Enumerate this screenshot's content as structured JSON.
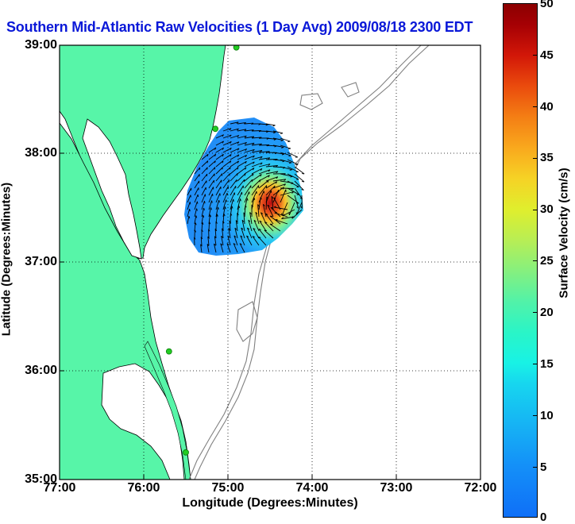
{
  "title": "Southern Mid-Atlantic Raw Velocities (1 Day Avg) 2009/08/18 2300 EDT",
  "axes": {
    "xlabel": "Longitude (Degrees:Minutes)",
    "ylabel": "Latitude (Degrees:Minutes)",
    "x_ticks": [
      "77:00",
      "76:00",
      "75:00",
      "74:00",
      "73:00",
      "72:00"
    ],
    "y_ticks": [
      "39:00",
      "38:00",
      "37:00",
      "36:00",
      "35:00"
    ],
    "x_range_deg_west": [
      77,
      72
    ],
    "y_range_deg_north": [
      35,
      39
    ],
    "grid": "dotted"
  },
  "colorbar": {
    "label": "Surface Velocity (cm/s)",
    "ticks": [
      "50",
      "45",
      "40",
      "35",
      "30",
      "25",
      "20",
      "15",
      "10",
      "5",
      "0"
    ],
    "range": [
      0,
      50
    ],
    "colormap": "jet"
  },
  "colors": {
    "land": "#57f5a8",
    "title": "#0a18d8",
    "bathymetry": "#808080",
    "station": "#22cc22"
  },
  "stations": [
    {
      "lon": -74.9,
      "lat": 38.98
    },
    {
      "lon": -75.15,
      "lat": 38.23
    },
    {
      "lon": -75.7,
      "lat": 36.18
    },
    {
      "lon": -75.5,
      "lat": 35.25
    }
  ]
}
